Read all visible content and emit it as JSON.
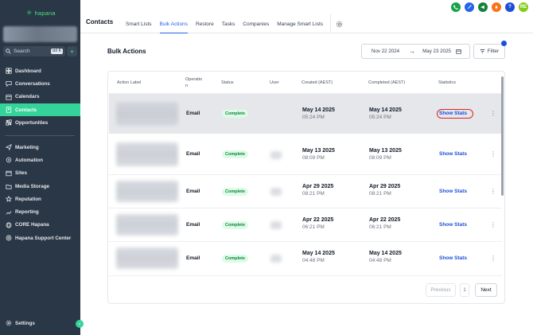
{
  "sidebar": {
    "logo_text": "hapana",
    "search_label": "Search",
    "search_shortcut": "ctrl K",
    "quick_add": "+",
    "items": [
      {
        "label": "Dashboard",
        "icon": "dashboard-icon"
      },
      {
        "label": "Conversations",
        "icon": "chat-icon"
      },
      {
        "label": "Calendars",
        "icon": "calendar-icon"
      },
      {
        "label": "Contacts",
        "icon": "contacts-icon",
        "active": true
      },
      {
        "label": "Opportunities",
        "icon": "opportunities-icon"
      },
      {
        "label": "Marketing",
        "icon": "marketing-icon"
      },
      {
        "label": "Automation",
        "icon": "automation-icon"
      },
      {
        "label": "Sites",
        "icon": "sites-icon"
      },
      {
        "label": "Media Storage",
        "icon": "media-icon"
      },
      {
        "label": "Reputation",
        "icon": "star-icon"
      },
      {
        "label": "Reporting",
        "icon": "reporting-icon"
      },
      {
        "label": "CORE Hapana",
        "icon": "globe-icon"
      },
      {
        "label": "Hapana Support Center",
        "icon": "help-icon"
      }
    ],
    "settings_label": "Settings",
    "collapse": "‹"
  },
  "topbar": {
    "section": "Contacts",
    "tabs": [
      "Smart Lists",
      "Bulk Actions",
      "Restore",
      "Tasks",
      "Companies",
      "Manage Smart Lists"
    ],
    "active_tab": "Bulk Actions",
    "icons": [
      {
        "name": "phone-icon",
        "color": "#16a34a"
      },
      {
        "name": "magic-icon",
        "color": "#2563eb"
      },
      {
        "name": "megaphone-icon",
        "color": "#15803d"
      },
      {
        "name": "bell-icon",
        "color": "#f97316"
      },
      {
        "name": "help-icon",
        "color": "#1d4ed8"
      },
      {
        "name": "avatar",
        "color": "#84cc16",
        "text": "RE"
      }
    ]
  },
  "page": {
    "title": "Bulk Actions",
    "date_start": "Nov 22 2024",
    "date_end": "May 23 2025",
    "filter_label": "Filter"
  },
  "table": {
    "headers": [
      "Action Label",
      "Operatio\nn",
      "Status",
      "User",
      "Created (AEST)",
      "Completed (AEST)",
      "Statistics"
    ],
    "rows": [
      {
        "operation": "Email",
        "status": "Complete",
        "created_date": "May 14 2025",
        "created_time": "05:24 PM",
        "completed_date": "May 14 2025",
        "completed_time": "05:24 PM",
        "stats": "Show Stats"
      },
      {
        "operation": "Email",
        "status": "Complete",
        "created_date": "May 13 2025",
        "created_time": "08:09 PM",
        "completed_date": "May 13 2025",
        "completed_time": "08:09 PM",
        "stats": "Show Stats"
      },
      {
        "operation": "Email",
        "status": "Complete",
        "created_date": "Apr 29 2025",
        "created_time": "08:21 PM",
        "completed_date": "Apr 29 2025",
        "completed_time": "08:21 PM",
        "stats": "Show Stats"
      },
      {
        "operation": "Email",
        "status": "Complete",
        "created_date": "Apr 22 2025",
        "created_time": "06:21 PM",
        "completed_date": "Apr 22 2025",
        "completed_time": "06:21 PM",
        "stats": "Show Stats"
      },
      {
        "operation": "Email",
        "status": "Complete",
        "created_date": "May 14 2025",
        "created_time": "04:48 PM",
        "completed_date": "May 14 2025",
        "completed_time": "04:48 PM",
        "stats": "Show Stats"
      }
    ]
  },
  "pagination": {
    "previous": "Previous",
    "page": "1",
    "next": "Next"
  }
}
